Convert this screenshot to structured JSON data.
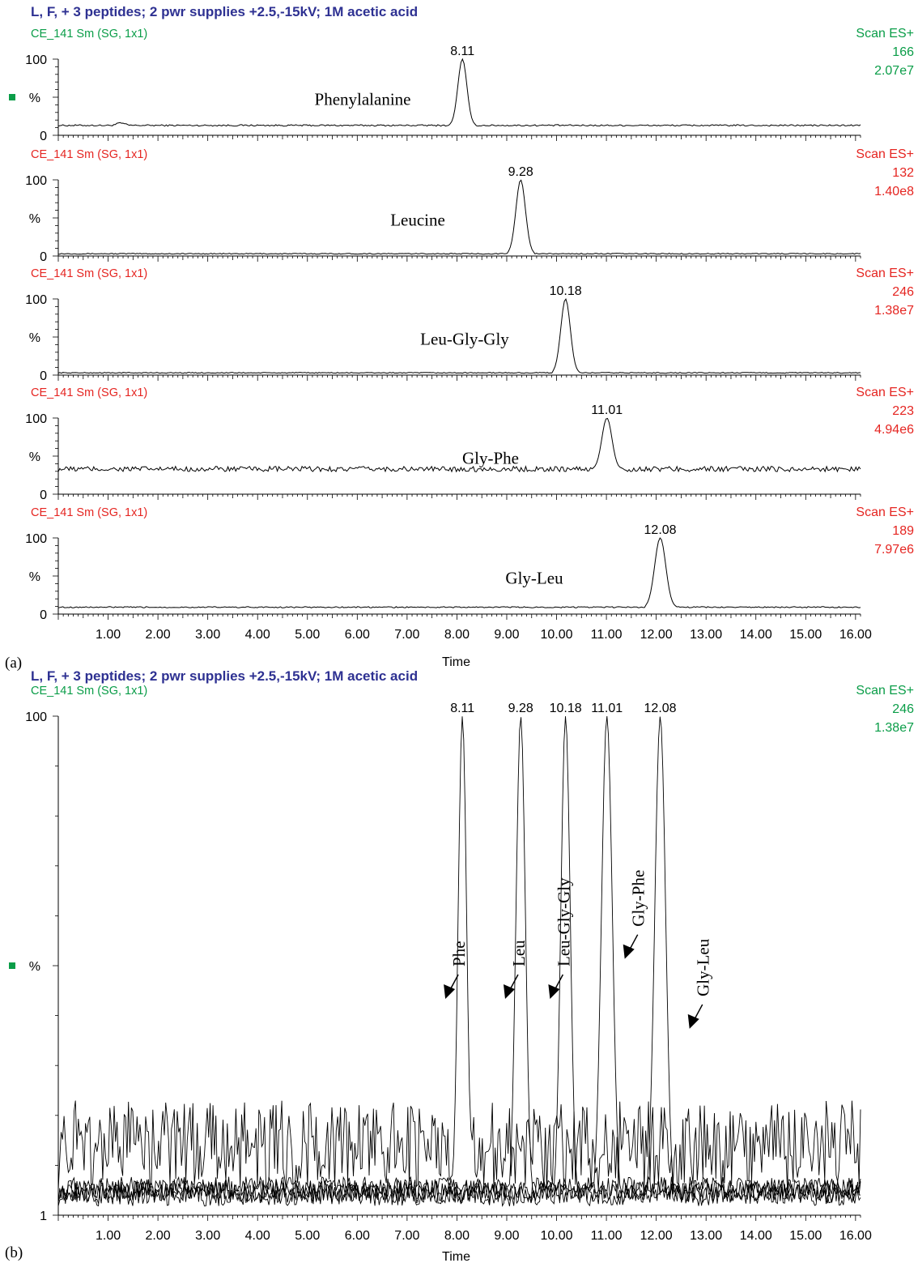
{
  "figure": {
    "panel_a_label": "(a)",
    "panel_b_label": "(b)",
    "colors": {
      "title": "#2e3192",
      "green": "#0a9d48",
      "red": "#e52521",
      "trace": "#000000"
    }
  },
  "chart_data": [
    {
      "type": "line",
      "panel": "(a)",
      "title": "L, F, + 3 peptides; 2 pwr supplies +2.5,-15kV; 1M acetic acid",
      "xlabel": "Time",
      "xlim": [
        0,
        16.1
      ],
      "x_ticks": [
        "1.00",
        "2.00",
        "3.00",
        "4.00",
        "5.00",
        "6.00",
        "7.00",
        "8.00",
        "9.00",
        "10.00",
        "11.00",
        "12.00",
        "13.00",
        "14.00",
        "15.00",
        "16.00"
      ],
      "ylabel": "%",
      "grid": false,
      "traces": [
        {
          "name": "Phenylalanine",
          "identifier": "CE_141 Sm (SG, 1x1)",
          "scan": "Scan ES+",
          "mass": "166",
          "intensity": "2.07e7",
          "color": "#0a9d48",
          "y_ticks": [
            "100",
            "%",
            "0"
          ],
          "peak_label": "8.11",
          "peak_x": 8.11,
          "peak_width": 0.09,
          "baseline": 13,
          "noise": 1,
          "bump_x": 1.25
        },
        {
          "name": "Leucine",
          "identifier": "CE_141 Sm (SG, 1x1)",
          "scan": "Scan ES+",
          "mass": "132",
          "intensity": "1.40e8",
          "color": "#e52521",
          "y_ticks": [
            "100",
            "%",
            "0"
          ],
          "peak_label": "9.28",
          "peak_x": 9.28,
          "peak_width": 0.095,
          "baseline": 3,
          "noise": 0.6
        },
        {
          "name": "Leu-Gly-Gly",
          "identifier": "CE_141 Sm (SG, 1x1)",
          "scan": "Scan ES+",
          "mass": "246",
          "intensity": "1.38e7",
          "color": "#e52521",
          "y_ticks": [
            "100",
            "%",
            "0"
          ],
          "peak_label": "10.18",
          "peak_x": 10.18,
          "peak_width": 0.095,
          "baseline": 3,
          "noise": 0.6
        },
        {
          "name": "Gly-Phe",
          "identifier": "CE_141 Sm (SG, 1x1)",
          "scan": "Scan ES+",
          "mass": "223",
          "intensity": "4.94e6",
          "color": "#e52521",
          "y_ticks": [
            "100",
            "%",
            "0"
          ],
          "peak_label": "11.01",
          "peak_x": 11.01,
          "peak_width": 0.1,
          "baseline": 33,
          "noise": 3.5
        },
        {
          "name": "Gly-Leu",
          "identifier": "CE_141 Sm (SG, 1x1)",
          "scan": "Scan ES+",
          "mass": "189",
          "intensity": "7.97e6",
          "color": "#e52521",
          "y_ticks": [
            "100",
            "%",
            "0"
          ],
          "peak_label": "12.08",
          "peak_x": 12.08,
          "peak_width": 0.11,
          "baseline": 9,
          "noise": 0.8
        }
      ]
    },
    {
      "type": "line",
      "panel": "(b)",
      "title": "L, F, + 3 peptides; 2 pwr supplies +2.5,-15kV; 1M acetic acid",
      "identifier": "CE_141 Sm (SG, 1x1)",
      "scan": "Scan ES+",
      "mass": "246",
      "intensity": "1.38e7",
      "xlabel": "Time",
      "xlim": [
        0,
        16.1
      ],
      "x_ticks": [
        "1.00",
        "2.00",
        "3.00",
        "4.00",
        "5.00",
        "6.00",
        "7.00",
        "8.00",
        "9.00",
        "10.00",
        "11.00",
        "12.00",
        "13.00",
        "14.00",
        "15.00",
        "16.00"
      ],
      "ylabel": "%",
      "y_ticks": [
        "100",
        "1"
      ],
      "grid": false,
      "peak_labels": [
        "8.11",
        "9.28",
        "10.18",
        "11.01",
        "12.08"
      ],
      "overlay_peaks": [
        {
          "x": 8.11,
          "width": 0.085
        },
        {
          "x": 9.28,
          "width": 0.095
        },
        {
          "x": 10.18,
          "width": 0.095
        },
        {
          "x": 11.01,
          "width": 0.11
        },
        {
          "x": 12.08,
          "width": 0.11
        }
      ],
      "annotations": [
        {
          "text": "Phe",
          "anchor_x": 7.8,
          "anchor_y": 44
        },
        {
          "text": "Leu",
          "anchor_x": 9.0,
          "anchor_y": 44
        },
        {
          "text": "Leu-Gly-Gly",
          "anchor_x": 9.9,
          "anchor_y": 44
        },
        {
          "text": "Gly-Phe",
          "anchor_x": 11.4,
          "anchor_y": 52
        },
        {
          "text": "Gly-Leu",
          "anchor_x": 12.7,
          "anchor_y": 38
        }
      ]
    }
  ]
}
